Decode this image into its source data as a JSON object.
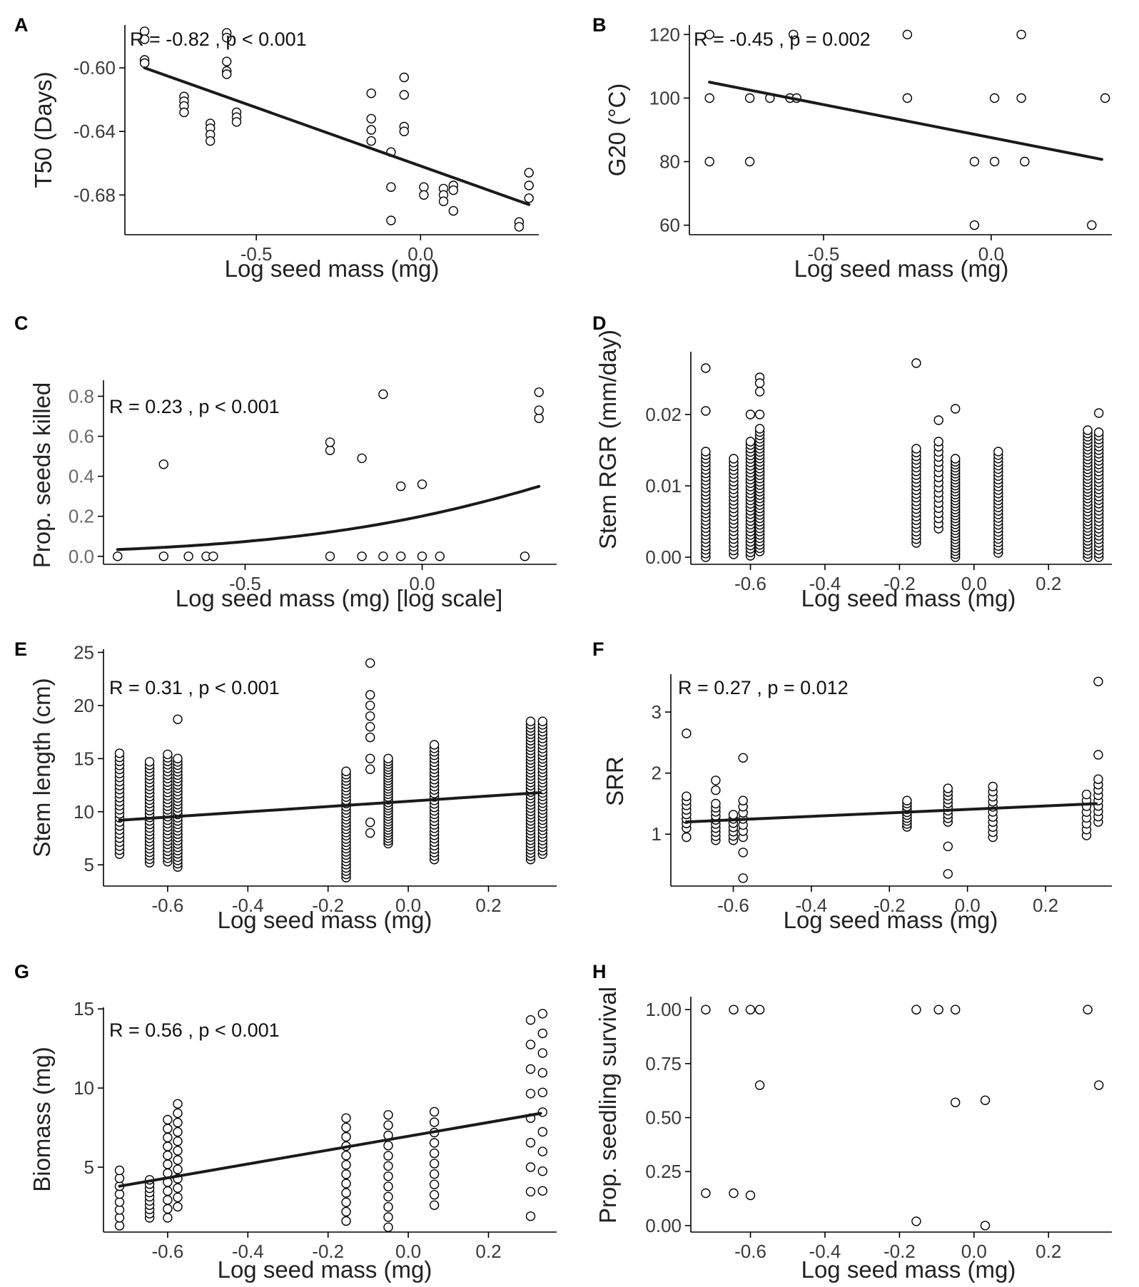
{
  "chart_data": [
    {
      "panel": "A",
      "type": "scatter",
      "xlabel": "Log seed mass (mg)",
      "ylabel": "T50 (Days)",
      "annotation": "R = -0.82 , p < 0.001",
      "xlim": [
        -0.9,
        0.36
      ],
      "ylim": [
        -0.705,
        -0.573
      ],
      "xticks": [
        -0.5,
        0.0
      ],
      "xtick_labels": [
        "-0.5",
        "0.0"
      ],
      "yticks": [
        -0.6,
        -0.64,
        -0.68
      ],
      "ytick_labels": [
        "-0.60",
        "-0.64",
        "-0.68"
      ],
      "fit": {
        "kind": "linear",
        "x": [
          -0.84,
          0.33
        ],
        "y": [
          -0.6,
          -0.686
        ]
      },
      "points": [
        [
          -0.84,
          -0.577
        ],
        [
          -0.84,
          -0.582
        ],
        [
          -0.84,
          -0.595
        ],
        [
          -0.84,
          -0.597
        ],
        [
          -0.72,
          -0.618
        ],
        [
          -0.72,
          -0.621
        ],
        [
          -0.72,
          -0.624
        ],
        [
          -0.72,
          -0.628
        ],
        [
          -0.64,
          -0.635
        ],
        [
          -0.64,
          -0.638
        ],
        [
          -0.64,
          -0.642
        ],
        [
          -0.64,
          -0.646
        ],
        [
          -0.59,
          -0.578
        ],
        [
          -0.59,
          -0.581
        ],
        [
          -0.59,
          -0.596
        ],
        [
          -0.59,
          -0.602
        ],
        [
          -0.59,
          -0.604
        ],
        [
          -0.56,
          -0.628
        ],
        [
          -0.56,
          -0.631
        ],
        [
          -0.56,
          -0.634
        ],
        [
          -0.15,
          -0.616
        ],
        [
          -0.15,
          -0.632
        ],
        [
          -0.15,
          -0.639
        ],
        [
          -0.15,
          -0.646
        ],
        [
          -0.09,
          -0.653
        ],
        [
          -0.09,
          -0.675
        ],
        [
          -0.09,
          -0.696
        ],
        [
          -0.05,
          -0.606
        ],
        [
          -0.05,
          -0.617
        ],
        [
          -0.05,
          -0.637
        ],
        [
          -0.05,
          -0.64
        ],
        [
          0.01,
          -0.675
        ],
        [
          0.01,
          -0.68
        ],
        [
          0.07,
          -0.676
        ],
        [
          0.07,
          -0.68
        ],
        [
          0.07,
          -0.684
        ],
        [
          0.1,
          -0.674
        ],
        [
          0.1,
          -0.677
        ],
        [
          0.1,
          -0.69
        ],
        [
          0.3,
          -0.697
        ],
        [
          0.3,
          -0.7
        ],
        [
          0.33,
          -0.666
        ],
        [
          0.33,
          -0.674
        ],
        [
          0.33,
          -0.682
        ]
      ]
    },
    {
      "panel": "B",
      "type": "scatter",
      "xlabel": "Log seed mass (mg)",
      "ylabel": "G20 (°C)",
      "annotation": "R = -0.45 , p = 0.002",
      "xlim": [
        -0.9,
        0.36
      ],
      "ylim": [
        57,
        123
      ],
      "xticks": [
        -0.5,
        0.0
      ],
      "xtick_labels": [
        "-0.5",
        "0.0"
      ],
      "yticks": [
        120,
        100,
        80,
        60
      ],
      "ytick_labels": [
        "120",
        "100",
        "80",
        "60"
      ],
      "fit": {
        "kind": "linear",
        "x": [
          -0.84,
          0.33
        ],
        "y": [
          105,
          80.7
        ]
      },
      "points": [
        [
          -0.84,
          120
        ],
        [
          -0.84,
          100
        ],
        [
          -0.84,
          80
        ],
        [
          -0.72,
          100
        ],
        [
          -0.72,
          80
        ],
        [
          -0.66,
          100
        ],
        [
          -0.6,
          100
        ],
        [
          -0.58,
          100
        ],
        [
          -0.59,
          120
        ],
        [
          -0.25,
          120
        ],
        [
          -0.25,
          100
        ],
        [
          -0.05,
          80
        ],
        [
          -0.05,
          60
        ],
        [
          0.01,
          100
        ],
        [
          0.01,
          80
        ],
        [
          0.09,
          120
        ],
        [
          0.09,
          100
        ],
        [
          0.1,
          80
        ],
        [
          0.3,
          60
        ],
        [
          0.34,
          100
        ]
      ]
    },
    {
      "panel": "C",
      "type": "scatter",
      "xlabel": "Log seed mass (mg) [log scale]",
      "ylabel": "Prop. seeds killed",
      "annotation": "R = 0.23 , p < 0.001",
      "xlim": [
        -0.9,
        0.38
      ],
      "ylim": [
        -0.04,
        0.88
      ],
      "xticks": [
        -0.5,
        0.0
      ],
      "xtick_labels": [
        "-0.5",
        "0.0"
      ],
      "yticks": [
        0.8,
        0.6,
        0.4,
        0.2,
        0.0
      ],
      "ytick_labels": [
        "0.8",
        "0.6",
        "0.4",
        "0.2",
        "0.0"
      ],
      "fit": {
        "kind": "logistic",
        "x0": -0.86,
        "x1": 0.33,
        "b0": -1.38,
        "b1": 2.3
      },
      "points": [
        [
          -0.86,
          0.0
        ],
        [
          -0.73,
          0.0
        ],
        [
          -0.73,
          0.46
        ],
        [
          -0.66,
          0.0
        ],
        [
          -0.61,
          0.0
        ],
        [
          -0.59,
          0.0
        ],
        [
          -0.26,
          0.0
        ],
        [
          -0.26,
          0.53
        ],
        [
          -0.26,
          0.57
        ],
        [
          -0.17,
          0.0
        ],
        [
          -0.17,
          0.49
        ],
        [
          -0.11,
          0.0
        ],
        [
          -0.11,
          0.81
        ],
        [
          -0.06,
          0.0
        ],
        [
          -0.06,
          0.35
        ],
        [
          0.0,
          0.0
        ],
        [
          0.0,
          0.36
        ],
        [
          0.05,
          0.0
        ],
        [
          0.29,
          0.0
        ],
        [
          0.33,
          0.69
        ],
        [
          0.33,
          0.73
        ],
        [
          0.33,
          0.82
        ]
      ]
    },
    {
      "panel": "D",
      "type": "scatter",
      "xlabel": "Log seed mass (mg)",
      "ylabel": "Stem RGR (mm/day)",
      "annotation": "",
      "xlim": [
        -0.76,
        0.37
      ],
      "ylim": [
        -0.001,
        0.0288
      ],
      "xticks": [
        -0.6,
        -0.4,
        -0.2,
        0.0,
        0.2
      ],
      "xtick_labels": [
        "-0.6",
        "-0.4",
        "-0.2",
        "0.0",
        "0.2"
      ],
      "yticks": [
        0.02,
        0.01,
        0.0
      ],
      "ytick_labels": [
        "0.02",
        "0.01",
        "0.00"
      ],
      "groups": [
        {
          "x": -0.72,
          "min": 0.0,
          "max": 0.0148,
          "count": 30,
          "outliers": [
            0.0265,
            0.0205
          ]
        },
        {
          "x": -0.645,
          "min": 0.0004,
          "max": 0.0138,
          "count": 26,
          "outliers": []
        },
        {
          "x": -0.6,
          "min": 0.0002,
          "max": 0.0162,
          "count": 34,
          "outliers": [
            0.02
          ]
        },
        {
          "x": -0.575,
          "min": 0.0008,
          "max": 0.018,
          "count": 38,
          "outliers": [
            0.0252,
            0.0244,
            0.0232,
            0.02
          ]
        },
        {
          "x": -0.155,
          "min": 0.002,
          "max": 0.0152,
          "count": 26,
          "outliers": [
            0.0272
          ]
        },
        {
          "x": -0.095,
          "min": 0.004,
          "max": 0.0162,
          "count": 18,
          "outliers": [
            0.0192
          ]
        },
        {
          "x": -0.05,
          "min": 0.0,
          "max": 0.0138,
          "count": 34,
          "outliers": [
            0.0208
          ]
        },
        {
          "x": 0.065,
          "min": 0.0006,
          "max": 0.0148,
          "count": 30,
          "outliers": []
        },
        {
          "x": 0.305,
          "min": 0.0,
          "max": 0.0178,
          "count": 40,
          "outliers": []
        },
        {
          "x": 0.335,
          "min": 0.0,
          "max": 0.0175,
          "count": 36,
          "outliers": [
            0.0202
          ]
        }
      ]
    },
    {
      "panel": "E",
      "type": "scatter",
      "xlabel": "Log seed mass (mg)",
      "ylabel": "Stem length (cm)",
      "annotation": "R = 0.31 , p < 0.001",
      "xlim": [
        -0.76,
        0.37
      ],
      "ylim": [
        3.0,
        25.3
      ],
      "xticks": [
        -0.6,
        -0.4,
        -0.2,
        0.0,
        0.2
      ],
      "xtick_labels": [
        "-0.6",
        "-0.4",
        "-0.2",
        "0.0",
        "0.2"
      ],
      "yticks": [
        25,
        20,
        15,
        10,
        5
      ],
      "ytick_labels": [
        "25",
        "20",
        "15",
        "10",
        "5"
      ],
      "fit": {
        "kind": "linear",
        "x": [
          -0.72,
          0.33
        ],
        "y": [
          9.2,
          11.8
        ]
      },
      "groups": [
        {
          "x": -0.72,
          "min": 6.0,
          "max": 15.5,
          "count": 26,
          "outliers": []
        },
        {
          "x": -0.645,
          "min": 5.2,
          "max": 14.7,
          "count": 30,
          "outliers": []
        },
        {
          "x": -0.6,
          "min": 5.3,
          "max": 15.4,
          "count": 32,
          "outliers": []
        },
        {
          "x": -0.575,
          "min": 4.8,
          "max": 15.0,
          "count": 34,
          "outliers": [
            18.7
          ]
        },
        {
          "x": -0.155,
          "min": 3.8,
          "max": 13.8,
          "count": 34,
          "outliers": []
        },
        {
          "x": -0.095,
          "min": 8.0,
          "max": 9.0,
          "count": 2,
          "outliers": [
            24.0,
            21.0,
            20.0,
            19.0,
            18.0,
            17.0,
            15.0,
            14.0
          ]
        },
        {
          "x": -0.05,
          "min": 7.0,
          "max": 15.0,
          "count": 32,
          "outliers": []
        },
        {
          "x": 0.065,
          "min": 5.5,
          "max": 16.3,
          "count": 34,
          "outliers": []
        },
        {
          "x": 0.305,
          "min": 5.5,
          "max": 18.5,
          "count": 44,
          "outliers": []
        },
        {
          "x": 0.335,
          "min": 6.0,
          "max": 18.5,
          "count": 40,
          "outliers": []
        }
      ]
    },
    {
      "panel": "F",
      "type": "scatter",
      "xlabel": "Log seed mass (mg)",
      "ylabel": "SRR",
      "annotation": "R = 0.27 , p = 0.012",
      "xlim": [
        -0.76,
        0.37
      ],
      "ylim": [
        0.15,
        3.62
      ],
      "xticks": [
        -0.6,
        -0.4,
        -0.2,
        0.0,
        0.2
      ],
      "xtick_labels": [
        "-0.6",
        "-0.4",
        "-0.2",
        "0.0",
        "0.2"
      ],
      "yticks": [
        3,
        2,
        1
      ],
      "ytick_labels": [
        "3",
        "2",
        "1"
      ],
      "fit": {
        "kind": "linear",
        "x": [
          -0.72,
          0.33
        ],
        "y": [
          1.2,
          1.5
        ]
      },
      "groups": [
        {
          "x": -0.72,
          "min": 1.1,
          "max": 1.62,
          "count": 8,
          "outliers": [
            2.65,
            0.95
          ]
        },
        {
          "x": -0.645,
          "min": 0.9,
          "max": 1.5,
          "count": 10,
          "outliers": [
            1.88,
            1.72
          ]
        },
        {
          "x": -0.6,
          "min": 0.9,
          "max": 1.32,
          "count": 7,
          "outliers": []
        },
        {
          "x": -0.575,
          "min": 0.95,
          "max": 1.55,
          "count": 7,
          "outliers": [
            2.25,
            0.7,
            0.28
          ]
        },
        {
          "x": -0.155,
          "min": 1.12,
          "max": 1.55,
          "count": 10,
          "outliers": []
        },
        {
          "x": -0.05,
          "min": 1.2,
          "max": 1.75,
          "count": 10,
          "outliers": [
            0.8,
            0.35
          ]
        },
        {
          "x": 0.065,
          "min": 0.95,
          "max": 1.78,
          "count": 11,
          "outliers": []
        },
        {
          "x": 0.305,
          "min": 0.98,
          "max": 1.65,
          "count": 8,
          "outliers": []
        },
        {
          "x": 0.335,
          "min": 1.2,
          "max": 1.9,
          "count": 9,
          "outliers": [
            3.5,
            2.3
          ]
        }
      ]
    },
    {
      "panel": "G",
      "type": "scatter",
      "xlabel": "Log seed mass (mg)",
      "ylabel": "Biomass (mg)",
      "annotation": "R = 0.56 , p < 0.001",
      "xlim": [
        -0.76,
        0.37
      ],
      "ylim": [
        0.9,
        15.1
      ],
      "xticks": [
        -0.6,
        -0.4,
        -0.2,
        0.0,
        0.2
      ],
      "xtick_labels": [
        "-0.6",
        "-0.4",
        "-0.2",
        "0.0",
        "0.2"
      ],
      "yticks": [
        15,
        10,
        5
      ],
      "ytick_labels": [
        "15",
        "10",
        "5"
      ],
      "fit": {
        "kind": "linear",
        "x": [
          -0.72,
          0.33
        ],
        "y": [
          3.8,
          8.4
        ]
      },
      "groups": [
        {
          "x": -0.72,
          "min": 1.3,
          "max": 4.8,
          "count": 8,
          "outliers": []
        },
        {
          "x": -0.645,
          "min": 1.8,
          "max": 4.2,
          "count": 10,
          "outliers": []
        },
        {
          "x": -0.6,
          "min": 1.8,
          "max": 8.0,
          "count": 12,
          "outliers": []
        },
        {
          "x": -0.575,
          "min": 2.5,
          "max": 9.0,
          "count": 12,
          "outliers": []
        },
        {
          "x": -0.155,
          "min": 1.6,
          "max": 8.1,
          "count": 12,
          "outliers": []
        },
        {
          "x": -0.05,
          "min": 1.2,
          "max": 8.3,
          "count": 12,
          "outliers": []
        },
        {
          "x": 0.065,
          "min": 2.6,
          "max": 8.5,
          "count": 10,
          "outliers": []
        },
        {
          "x": 0.305,
          "min": 1.9,
          "max": 14.3,
          "count": 9,
          "outliers": []
        },
        {
          "x": 0.335,
          "min": 3.5,
          "max": 14.7,
          "count": 10,
          "outliers": []
        }
      ]
    },
    {
      "panel": "H",
      "type": "scatter",
      "xlabel": "Log seed mass (mg)",
      "ylabel": "Prop. seedling survival",
      "annotation": "",
      "xlim": [
        -0.76,
        0.37
      ],
      "ylim": [
        -0.03,
        1.06
      ],
      "xticks": [
        -0.6,
        -0.4,
        -0.2,
        0.0,
        0.2
      ],
      "xtick_labels": [
        "-0.6",
        "-0.4",
        "-0.2",
        "0.0",
        "0.2"
      ],
      "yticks": [
        1.0,
        0.75,
        0.5,
        0.25,
        0.0
      ],
      "ytick_labels": [
        "1.00",
        "0.75",
        "0.50",
        "0.25",
        "0.00"
      ],
      "points": [
        [
          -0.72,
          1.0
        ],
        [
          -0.72,
          0.15
        ],
        [
          -0.645,
          1.0
        ],
        [
          -0.645,
          0.15
        ],
        [
          -0.6,
          1.0
        ],
        [
          -0.6,
          0.14
        ],
        [
          -0.575,
          1.0
        ],
        [
          -0.575,
          0.65
        ],
        [
          -0.155,
          1.0
        ],
        [
          -0.155,
          0.02
        ],
        [
          -0.095,
          1.0
        ],
        [
          -0.05,
          1.0
        ],
        [
          -0.05,
          0.57
        ],
        [
          0.03,
          0.58
        ],
        [
          0.03,
          0.0
        ],
        [
          0.305,
          1.0
        ],
        [
          0.335,
          0.65
        ]
      ]
    }
  ]
}
